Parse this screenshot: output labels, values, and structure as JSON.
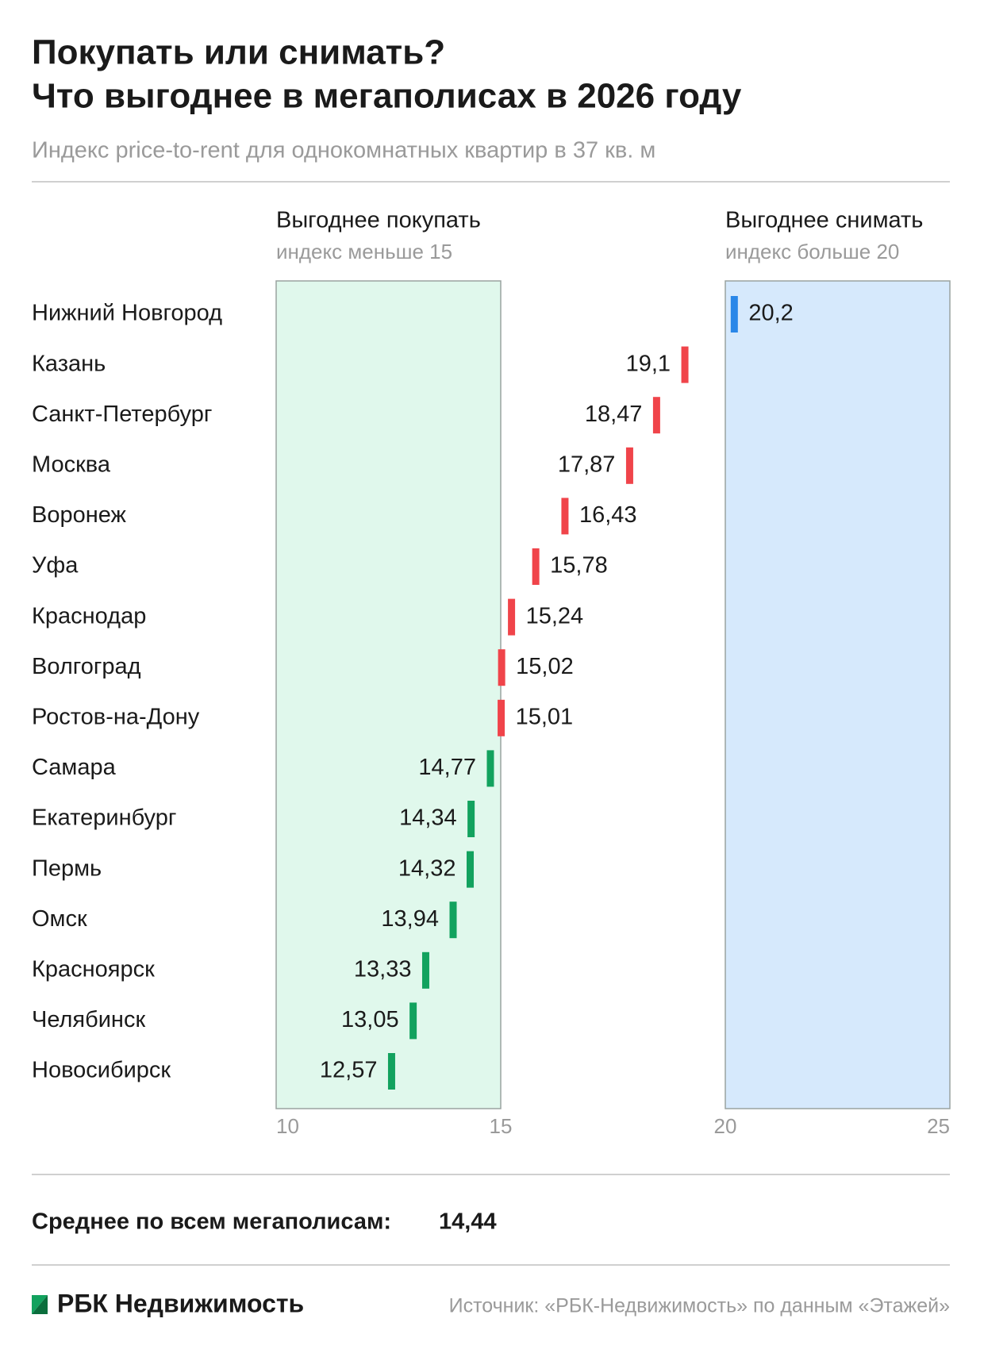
{
  "chart_data": {
    "type": "dot",
    "title": [
      "Покупать или снимать?",
      "Что выгоднее в мегаполисах в 2026 году"
    ],
    "subtitle": "Индекс price-to-rent для однокомнатных квартир в 37 кв. м",
    "zones": [
      {
        "label": "Выгоднее покупать",
        "sublabel": "индекс меньше 15",
        "range": [
          10,
          15
        ],
        "color": "#e0f8ec"
      },
      {
        "label": "Выгоднее снимать",
        "sublabel": "индекс больше 20",
        "range": [
          20,
          25
        ],
        "color": "#d6e9fc"
      }
    ],
    "categories": [
      "Нижний Новгород",
      "Казань",
      "Санкт-Петербург",
      "Москва",
      "Воронеж",
      "Уфа",
      "Краснодар",
      "Волгоград",
      "Ростов-на-Дону",
      "Самара",
      "Екатеринбург",
      "Пермь",
      "Омск",
      "Красноярск",
      "Челябинск",
      "Новосибирск"
    ],
    "values": [
      20.2,
      19.1,
      18.47,
      17.87,
      16.43,
      15.78,
      15.24,
      15.02,
      15.01,
      14.77,
      14.34,
      14.32,
      13.94,
      13.33,
      13.05,
      12.57
    ],
    "value_labels": [
      "20,2",
      "19,1",
      "18,47",
      "17,87",
      "16,43",
      "15,78",
      "15,24",
      "15,02",
      "15,01",
      "14,77",
      "14,34",
      "14,32",
      "13,94",
      "13,33",
      "13,05",
      "12,57"
    ],
    "colors": [
      "#2a87e8",
      "#f0444a",
      "#f0444a",
      "#f0444a",
      "#f0444a",
      "#f0444a",
      "#f0444a",
      "#f0444a",
      "#f0444a",
      "#12a25e",
      "#12a25e",
      "#12a25e",
      "#12a25e",
      "#12a25e",
      "#12a25e",
      "#12a25e"
    ],
    "xlim": [
      10,
      25
    ],
    "xticks": [
      10,
      15,
      20,
      25
    ],
    "average": {
      "label": "Среднее по всем мегаполисам:",
      "value": 14.44,
      "value_label": "14,44"
    },
    "brand": "РБК Недвижимость",
    "source": "Источник: «РБК-Недвижимость» по данным «Этажей»"
  }
}
